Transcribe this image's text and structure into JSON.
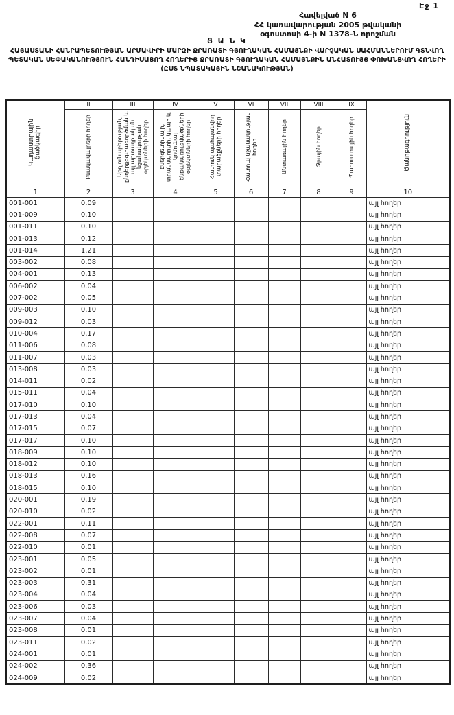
{
  "page": {
    "page_label": "Էջ 1",
    "appendix_lines": {
      "line1": "Հավելված N 6",
      "line2": "ՀՀ կառավարության 2005 թվականի",
      "line3": "օգոստոսի 4-ի N 1378-Ն որոշման"
    },
    "title_word": "Ց Ա Ն Կ",
    "title": "ՀԱՅԱՍՏԱՆԻ ՀԱՆՐԱՊԵՏՈՒԹՅԱՆ ԱՐՄԱՎԻՐԻ ՄԱՐԶԻ ՋՐԱՌԱՏԻ ԳՅՈՒՂԱԿԱՆ ՀԱՄԱՅՆՔԻ ՎԱՐՉԱԿԱՆ ՍԱՀՄԱՆՆԵՐՈՒՄ ԳՏՆՎՈՂ ՊԵՏԱԿԱՆ ՍԵՓԱԿԱՆՈՒԹՅՈՒՆ ՀԱՆԴԻՍԱՑՈՂ ՀՈՂԵՐԻՑ ՋՐԱՌԱՏԻ ԳՅՈՒՂԱԿԱՆ ՀԱՄԱՅՆՔԻՆ ԱՆՀԱՏՈՒՅՑ ՓՈԽԱՆՑՎՈՂ ՀՈՂԵՐԻ (ԸՍՏ ՆՊԱՏԱԿԱՅԻՆ ՆՇԱՆԱԿՈՒԹՅԱՆ)"
  },
  "table": {
    "columns": [
      {
        "num": "1",
        "roman": "",
        "label": "Կադաստրային ծածկագիր"
      },
      {
        "num": "2",
        "roman": "II",
        "label": "Բնակավայրերի հողեր"
      },
      {
        "num": "3",
        "roman": "III",
        "label": "Արդյունաբերության, ընդերքօգտագործման և այլ արտադրական նշանակության օբյեկտների հողեր"
      },
      {
        "num": "4",
        "roman": "IV",
        "label": "Էներգետիկայի, տրանսպորտի, կապի և կոմունալ ենթակառուցվածքների օբյեկտների հողեր"
      },
      {
        "num": "5",
        "roman": "V",
        "label": "Հատուկ պահպանվող տարածքների հողեր"
      },
      {
        "num": "6",
        "roman": "VI",
        "label": "Հատուկ նշանակության հողեր"
      },
      {
        "num": "7",
        "roman": "VII",
        "label": "Անտառային հողեր"
      },
      {
        "num": "8",
        "roman": "VIII",
        "label": "Ջրային հողեր"
      },
      {
        "num": "9",
        "roman": "IX",
        "label": "Պահուստային հողեր"
      },
      {
        "num": "10",
        "roman": "",
        "label": "Ծանոթագրություն"
      }
    ],
    "rows": [
      {
        "code": "001-001",
        "settlement": "0.09",
        "note": "այլ հողեր"
      },
      {
        "code": "001-009",
        "settlement": "0.10",
        "note": "այլ հողեր"
      },
      {
        "code": "001-011",
        "settlement": "0.10",
        "note": "այլ հողեր"
      },
      {
        "code": "001-013",
        "settlement": "0.12",
        "note": "այլ հողեր"
      },
      {
        "code": "001-014",
        "settlement": "1.21",
        "note": "այլ հողեր"
      },
      {
        "code": "003-002",
        "settlement": "0.08",
        "note": "այլ հողեր"
      },
      {
        "code": "004-001",
        "settlement": "0.13",
        "note": "այլ հողեր"
      },
      {
        "code": "006-002",
        "settlement": "0.04",
        "note": "այլ հողեր"
      },
      {
        "code": "007-002",
        "settlement": "0.05",
        "note": "այլ հողեր"
      },
      {
        "code": "009-003",
        "settlement": "0.10",
        "note": "այլ հողեր"
      },
      {
        "code": "009-012",
        "settlement": "0.03",
        "note": "այլ հողեր"
      },
      {
        "code": "010-004",
        "settlement": "0.17",
        "note": "այլ հողեր"
      },
      {
        "code": "011-006",
        "settlement": "0.08",
        "note": "այլ հողեր"
      },
      {
        "code": "011-007",
        "settlement": "0.03",
        "note": "այլ հողեր"
      },
      {
        "code": "013-008",
        "settlement": "0.03",
        "note": "այլ հողեր"
      },
      {
        "code": "014-011",
        "settlement": "0.02",
        "note": "այլ հողեր"
      },
      {
        "code": "015-011",
        "settlement": "0.04",
        "note": "այլ հողեր"
      },
      {
        "code": "017-010",
        "settlement": "0.10",
        "note": "այլ հողեր"
      },
      {
        "code": "017-013",
        "settlement": "0.04",
        "note": "այլ հողեր"
      },
      {
        "code": "017-015",
        "settlement": "0.07",
        "note": "այլ հողեր"
      },
      {
        "code": "017-017",
        "settlement": "0.10",
        "note": "այլ հողեր"
      },
      {
        "code": "018-009",
        "settlement": "0.10",
        "note": "այլ հողեր"
      },
      {
        "code": "018-012",
        "settlement": "0.10",
        "note": "այլ հողեր"
      },
      {
        "code": "018-013",
        "settlement": "0.16",
        "note": "այլ հողեր"
      },
      {
        "code": "018-015",
        "settlement": "0.10",
        "note": "այլ հողեր"
      },
      {
        "code": "020-001",
        "settlement": "0.19",
        "note": "այլ հողեր"
      },
      {
        "code": "020-010",
        "settlement": "0.02",
        "note": "այլ հողեր"
      },
      {
        "code": "022-001",
        "settlement": "0.11",
        "note": "այլ հողեր"
      },
      {
        "code": "022-008",
        "settlement": "0.07",
        "note": "այլ հողեր"
      },
      {
        "code": "022-010",
        "settlement": "0.01",
        "note": "այլ հողեր"
      },
      {
        "code": "023-001",
        "settlement": "0.05",
        "note": "այլ հողեր"
      },
      {
        "code": "023-002",
        "settlement": "0.01",
        "note": "այլ հողեր"
      },
      {
        "code": "023-003",
        "settlement": "0.31",
        "note": "այլ հողեր"
      },
      {
        "code": "023-004",
        "settlement": "0.04",
        "note": "այլ հողեր"
      },
      {
        "code": "023-006",
        "settlement": "0.03",
        "note": "այլ հողեր"
      },
      {
        "code": "023-007",
        "settlement": "0.04",
        "note": "այլ հողեր"
      },
      {
        "code": "023-008",
        "settlement": "0.01",
        "note": "այլ հողեր"
      },
      {
        "code": "023-011",
        "settlement": "0.02",
        "note": "այլ հողեր"
      },
      {
        "code": "024-001",
        "settlement": "0.01",
        "note": "այլ հողեր"
      },
      {
        "code": "024-002",
        "settlement": "0.36",
        "note": "այլ հողեր"
      },
      {
        "code": "024-009",
        "settlement": "0.02",
        "note": "այլ հողեր"
      }
    ]
  }
}
